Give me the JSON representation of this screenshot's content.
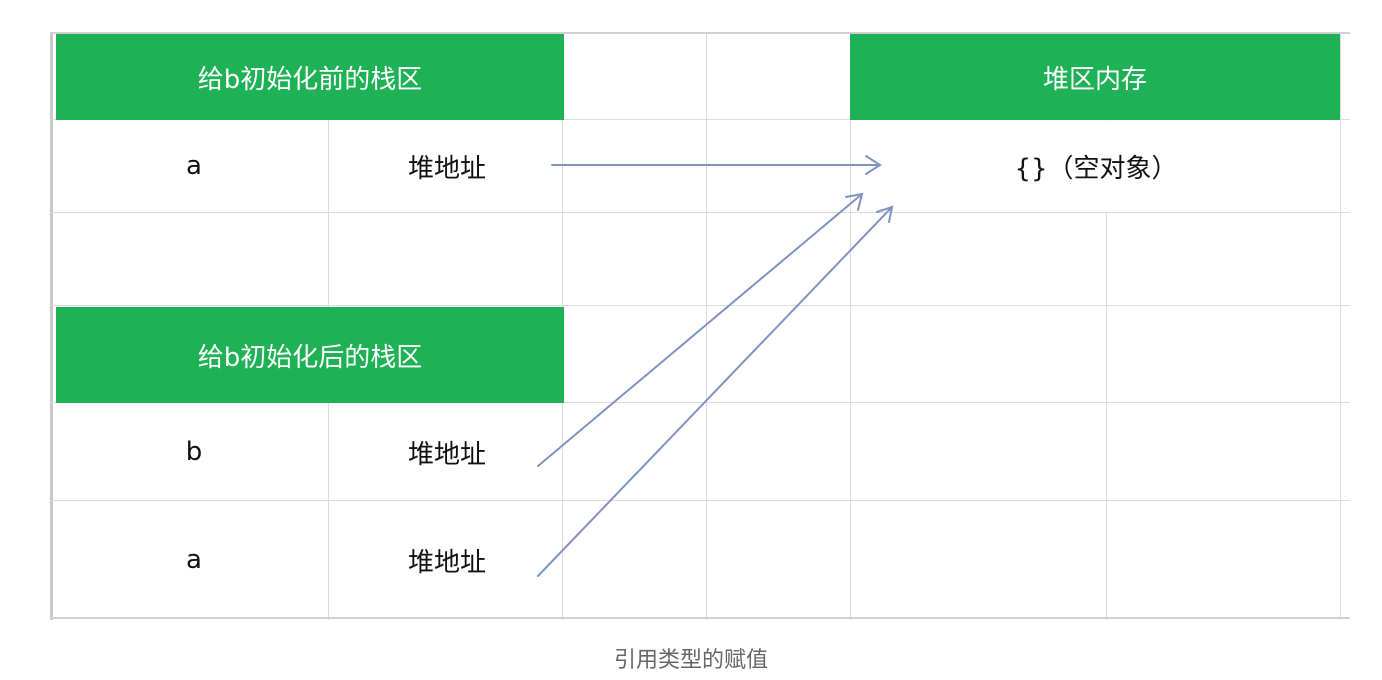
{
  "headers": {
    "before_stack": "给b初始化前的栈区",
    "after_stack": "给b初始化后的栈区",
    "heap": "堆区内存"
  },
  "rows": {
    "before_a_name": "a",
    "before_a_value": "堆地址",
    "after_b_name": "b",
    "after_b_value": "堆地址",
    "after_a_name": "a",
    "after_a_value": "堆地址"
  },
  "heap_object": "{}（空对象）",
  "caption": "引用类型的赋值",
  "colors": {
    "header_bg": "#1fb155",
    "header_text": "#ffffff",
    "arrow": "#7f93c0",
    "grid": "#dcdcdc"
  }
}
